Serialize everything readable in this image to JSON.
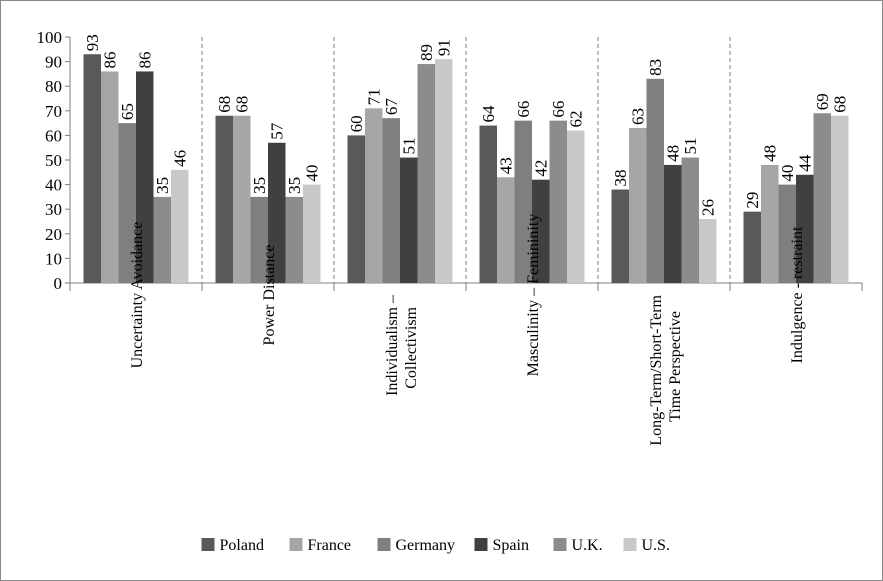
{
  "chart_data": {
    "type": "bar",
    "title": "",
    "xlabel": "",
    "ylabel": "",
    "ylim": [
      0,
      100
    ],
    "ytick_step": 10,
    "grid": false,
    "category_separators": "dashed",
    "data_labels": "vertical",
    "legend_position": "bottom",
    "categories": [
      [
        "Uncertainty Avoidance"
      ],
      [
        "Power Distance"
      ],
      [
        "Individualism –",
        "Collectivism"
      ],
      [
        "Masculinity – Femininity"
      ],
      [
        "Long-Term/Short-Term",
        "Time Perspective"
      ],
      [
        "Indulgence - restraint"
      ]
    ],
    "series": [
      {
        "name": "Poland",
        "color": "#595959",
        "values": [
          93,
          68,
          60,
          64,
          38,
          29
        ]
      },
      {
        "name": "France",
        "color": "#a6a6a6",
        "values": [
          86,
          68,
          71,
          43,
          63,
          48
        ]
      },
      {
        "name": "Germany",
        "color": "#7f7f7f",
        "values": [
          65,
          35,
          67,
          66,
          83,
          40
        ]
      },
      {
        "name": "Spain",
        "color": "#404040",
        "values": [
          86,
          57,
          51,
          42,
          48,
          44
        ]
      },
      {
        "name": "U.K.",
        "color": "#8c8c8c",
        "values": [
          35,
          35,
          89,
          66,
          51,
          69
        ]
      },
      {
        "name": "U.S.",
        "color": "#c8c8c8",
        "values": [
          46,
          40,
          91,
          62,
          26,
          68
        ]
      }
    ]
  }
}
